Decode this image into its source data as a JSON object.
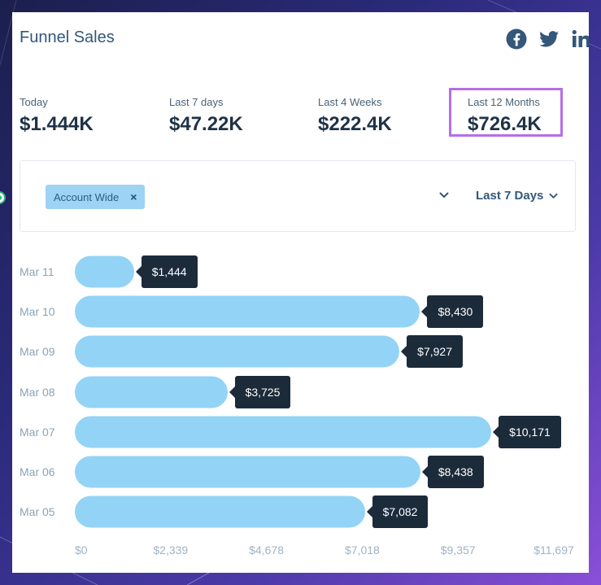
{
  "widget": {
    "title": "Funnel Sales",
    "social": [
      "facebook-icon",
      "twitter-icon",
      "linkedin-icon"
    ]
  },
  "kpis": [
    {
      "label": "Today",
      "value": "$1.444K"
    },
    {
      "label": "Last 7 days",
      "value": "$47.22K"
    },
    {
      "label": "Last 4 Weeks",
      "value": "$222.4K"
    },
    {
      "label": "Last 12 Months",
      "value": "$726.4K",
      "highlighted": true
    }
  ],
  "filters": {
    "chip_label": "Account Wide",
    "chip_remove": "×",
    "range_label": "Last 7 Days"
  },
  "colors": {
    "bar": "#93d3f6",
    "tooltip": "#1c2b3a",
    "highlight_border": "#b56ee8",
    "title": "#34577a"
  },
  "chart_data": {
    "type": "bar",
    "orientation": "horizontal",
    "categories": [
      "Mar 11",
      "Mar 10",
      "Mar 09",
      "Mar 08",
      "Mar 07",
      "Mar 06",
      "Mar 05"
    ],
    "values": [
      1444,
      8430,
      7927,
      3725,
      10171,
      8438,
      7082
    ],
    "value_labels": [
      "$1,444",
      "$8,430",
      "$7,927",
      "$3,725",
      "$10,171",
      "$8,438",
      "$7,082"
    ],
    "x_ticks": [
      "$0",
      "$2,339",
      "$4,678",
      "$7,018",
      "$9,357",
      "$11,697"
    ],
    "xlim": [
      0,
      11697
    ],
    "grid": false
  }
}
